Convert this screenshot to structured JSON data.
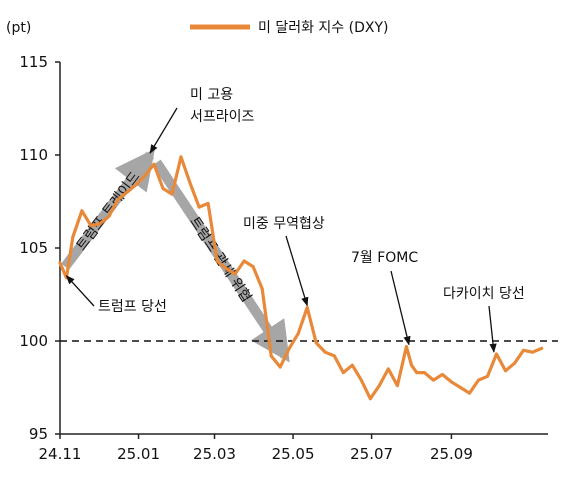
{
  "chart_data": {
    "type": "line",
    "unit_label": "(pt)",
    "legend": {
      "label": "미 달러화 지수 (DXY)",
      "position": "top-center"
    },
    "series": [
      {
        "name": "미 달러화 지수 (DXY)",
        "color": "#E8893A",
        "x": [
          "2024-11-01",
          "2024-11-06",
          "2024-11-11",
          "2024-11-18",
          "2024-11-25",
          "2024-12-02",
          "2024-12-09",
          "2024-12-16",
          "2024-12-23",
          "2024-12-30",
          "2025-01-06",
          "2025-01-13",
          "2025-01-20",
          "2025-01-27",
          "2025-02-03",
          "2025-02-10",
          "2025-02-17",
          "2025-02-24",
          "2025-03-03",
          "2025-03-10",
          "2025-03-17",
          "2025-03-24",
          "2025-03-31",
          "2025-04-07",
          "2025-04-14",
          "2025-04-21",
          "2025-04-28",
          "2025-05-05",
          "2025-05-12",
          "2025-05-19",
          "2025-05-26",
          "2025-06-02",
          "2025-06-09",
          "2025-06-16",
          "2025-06-23",
          "2025-06-30",
          "2025-07-07",
          "2025-07-14",
          "2025-07-21",
          "2025-07-28",
          "2025-08-01",
          "2025-08-05",
          "2025-08-11",
          "2025-08-18",
          "2025-08-25",
          "2025-09-01",
          "2025-09-08",
          "2025-09-15",
          "2025-09-22",
          "2025-09-29",
          "2025-10-06",
          "2025-10-13",
          "2025-10-20",
          "2025-10-27",
          "2025-11-03",
          "2025-11-10"
        ],
        "y": [
          104.2,
          103.4,
          105.6,
          107.0,
          106.2,
          106.3,
          106.7,
          107.6,
          108.0,
          108.4,
          108.9,
          109.5,
          108.2,
          107.9,
          109.9,
          108.5,
          107.2,
          107.4,
          104.3,
          103.9,
          103.6,
          104.3,
          104.0,
          102.8,
          99.2,
          98.6,
          99.6,
          100.4,
          101.8,
          99.9,
          99.4,
          99.2,
          98.3,
          98.7,
          97.9,
          96.9,
          97.6,
          98.5,
          97.6,
          99.7,
          98.7,
          98.3,
          98.3,
          97.9,
          98.2,
          97.8,
          97.5,
          97.2,
          97.9,
          98.1,
          99.3,
          98.4,
          98.8,
          99.5,
          99.4,
          99.6
        ]
      }
    ],
    "x_ticks": [
      "24.11",
      "25.01",
      "25.03",
      "25.05",
      "25.07",
      "25.09"
    ],
    "x_tick_dates": [
      "2024-11-01",
      "2025-01-01",
      "2025-03-01",
      "2025-05-01",
      "2025-07-01",
      "2025-09-01"
    ],
    "x_range": [
      "2024-11-01",
      "2025-11-15"
    ],
    "y_ticks": [
      115,
      110,
      105,
      100,
      95
    ],
    "ylim": [
      95,
      115
    ],
    "reference_line": {
      "y": 100,
      "style": "dashed"
    },
    "grid": false,
    "trend_arrows": [
      {
        "label": "트럼프 트레이드",
        "from": {
          "x": "2024-11-05",
          "y": 104.0
        },
        "to": {
          "x": "2025-01-10",
          "y": 110.0
        }
      },
      {
        "label": "트럼프 관세 위협",
        "from": {
          "x": "2025-01-15",
          "y": 109.6
        },
        "to": {
          "x": "2025-04-25",
          "y": 99.2
        }
      }
    ],
    "annotations": [
      {
        "text": "트럼프 당선",
        "point": {
          "x": "2024-11-06",
          "y": 103.4
        }
      },
      {
        "text": "미 고용\n서프라이즈",
        "point": {
          "x": "2025-01-10",
          "y": 110.0
        }
      },
      {
        "text": "미중 무역협상",
        "point": {
          "x": "2025-05-12",
          "y": 101.8
        }
      },
      {
        "text": "7월 FOMC",
        "point": {
          "x": "2025-07-30",
          "y": 99.7
        }
      },
      {
        "text": "다카이치 당선",
        "point": {
          "x": "2025-10-04",
          "y": 99.3
        }
      }
    ]
  }
}
